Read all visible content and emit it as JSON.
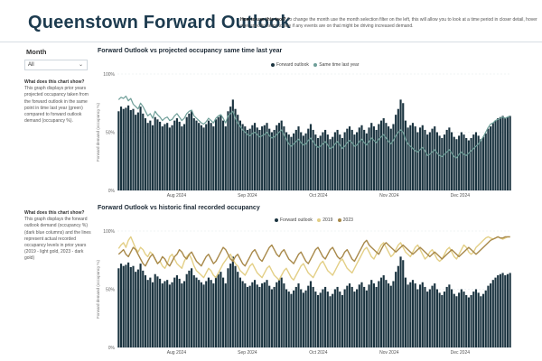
{
  "page": {
    "title": "Queenstown Forward Outlook"
  },
  "help": {
    "lead": "How to use this tool?",
    "text": "To change the month use the month selection filter on the left, this will allow you to look at a time period in closer detail, hover over specific items to see if any events are on that might be driving increased demand."
  },
  "filter": {
    "label": "Month",
    "value": "All"
  },
  "desc1": {
    "lead": "What does this chart show?",
    "text": "This graph displays prior years projected occupancy taken from the forward outlook in the same point in time last year (green) compared to forward outlook demand (occupancy %)."
  },
  "desc2": {
    "lead": "What does this chart show?",
    "text": "This graph displays the forward outlook demand (occupancy %) (dark blue columns) and the lines represent actual recorded occupancy levels in prior years (2019 - light gold, 2023 - dark gold)"
  },
  "colors": {
    "bar": "#1b3440",
    "green": "#6e9e98",
    "lightgold": "#e3cf86",
    "darkgold": "#a8894a"
  },
  "chart_data": [
    {
      "type": "bar",
      "title": "Forward Outlook vs projected occupancy same time last year",
      "ylabel": "Forward demand (occupancy %)",
      "ylim": [
        0,
        100
      ],
      "yticks": [
        "0%",
        "50%",
        "100%"
      ],
      "xticks": [
        "Aug 2024",
        "Sep 2024",
        "Oct 2024",
        "Nov 2024",
        "Dec 2024"
      ],
      "legend": [
        "Forward outlook",
        "Same time last year"
      ],
      "series": [
        {
          "name": "Forward outlook",
          "values": [
            68,
            72,
            70,
            71,
            73,
            69,
            70,
            65,
            67,
            72,
            66,
            62,
            58,
            60,
            56,
            63,
            61,
            59,
            55,
            57,
            58,
            54,
            56,
            60,
            62,
            59,
            55,
            57,
            63,
            66,
            68,
            62,
            60,
            58,
            56,
            54,
            57,
            60,
            58,
            55,
            61,
            63,
            65,
            60,
            55,
            68,
            72,
            78,
            70,
            65,
            60,
            57,
            55,
            52,
            53,
            56,
            58,
            54,
            52,
            55,
            56,
            58,
            53,
            50,
            52,
            56,
            58,
            60,
            55,
            50,
            48,
            46,
            49,
            52,
            55,
            50,
            47,
            49,
            53,
            57,
            52,
            48,
            45,
            47,
            50,
            52,
            48,
            44,
            46,
            50,
            52,
            48,
            45,
            50,
            53,
            55,
            52,
            48,
            50,
            54,
            56,
            52,
            49,
            54,
            58,
            55,
            52,
            57,
            60,
            62,
            58,
            55,
            53,
            57,
            65,
            70,
            78,
            75,
            60,
            54,
            56,
            58,
            55,
            50,
            54,
            56,
            52,
            48,
            50,
            53,
            55,
            50,
            47,
            45,
            48,
            52,
            54,
            50,
            46,
            44,
            47,
            50,
            48,
            45,
            43,
            45,
            48,
            50,
            47,
            44,
            46,
            49,
            53,
            55,
            58,
            60,
            62,
            63,
            64,
            62,
            63,
            64
          ]
        },
        {
          "name": "Same time last year",
          "values": [
            78,
            80,
            79,
            81,
            77,
            79,
            74,
            72,
            70,
            75,
            72,
            68,
            64,
            66,
            62,
            68,
            65,
            63,
            60,
            62,
            63,
            60,
            61,
            64,
            66,
            63,
            60,
            62,
            66,
            68,
            69,
            64,
            62,
            60,
            58,
            57,
            59,
            62,
            60,
            58,
            62,
            64,
            65,
            62,
            58,
            64,
            66,
            68,
            62,
            58,
            55,
            52,
            50,
            48,
            47,
            49,
            50,
            48,
            46,
            47,
            48,
            50,
            47,
            45,
            46,
            48,
            50,
            52,
            48,
            44,
            40,
            38,
            40,
            42,
            44,
            41,
            39,
            40,
            43,
            45,
            42,
            39,
            37,
            38,
            40,
            42,
            39,
            36,
            37,
            40,
            42,
            39,
            36,
            38,
            41,
            43,
            41,
            38,
            39,
            42,
            44,
            41,
            39,
            42,
            45,
            43,
            41,
            44,
            46,
            48,
            45,
            42,
            40,
            43,
            47,
            50,
            52,
            50,
            44,
            40,
            38,
            36,
            34,
            33,
            35,
            37,
            34,
            30,
            31,
            33,
            35,
            32,
            30,
            29,
            31,
            33,
            35,
            32,
            29,
            28,
            31,
            33,
            31,
            30,
            32,
            34,
            36,
            38,
            40,
            43,
            46,
            50,
            54,
            57,
            58,
            60,
            61,
            62,
            63,
            62,
            63,
            64
          ]
        }
      ]
    },
    {
      "type": "bar",
      "title": "Forward Outlook vs historic final recorded occupancy",
      "ylabel": "Forward demand (occupancy %)",
      "ylim": [
        0,
        100
      ],
      "yticks": [
        "0%",
        "50%",
        "100%"
      ],
      "xticks": [
        "Aug 2024",
        "Sep 2024",
        "Oct 2024",
        "Nov 2024",
        "Dec 2024"
      ],
      "legend": [
        "Forward outlook",
        "2019",
        "2023"
      ],
      "series": [
        {
          "name": "Forward outlook",
          "values": [
            68,
            72,
            70,
            71,
            73,
            69,
            70,
            65,
            67,
            72,
            66,
            62,
            58,
            60,
            56,
            63,
            61,
            59,
            55,
            57,
            58,
            54,
            56,
            60,
            62,
            59,
            55,
            57,
            63,
            66,
            68,
            62,
            60,
            58,
            56,
            54,
            57,
            60,
            58,
            55,
            61,
            63,
            65,
            60,
            55,
            68,
            72,
            78,
            70,
            65,
            60,
            57,
            55,
            52,
            53,
            56,
            58,
            54,
            52,
            55,
            56,
            58,
            53,
            50,
            52,
            56,
            58,
            60,
            55,
            50,
            48,
            46,
            49,
            52,
            55,
            50,
            47,
            49,
            53,
            57,
            52,
            48,
            45,
            47,
            50,
            52,
            48,
            44,
            46,
            50,
            52,
            48,
            45,
            50,
            53,
            55,
            52,
            48,
            50,
            54,
            56,
            52,
            49,
            54,
            58,
            55,
            52,
            57,
            60,
            62,
            58,
            55,
            53,
            57,
            65,
            70,
            78,
            75,
            60,
            54,
            56,
            58,
            55,
            50,
            54,
            56,
            52,
            48,
            50,
            53,
            55,
            50,
            47,
            45,
            48,
            52,
            54,
            50,
            46,
            44,
            47,
            50,
            48,
            45,
            43,
            45,
            48,
            50,
            47,
            44,
            46,
            49,
            53,
            55,
            58,
            60,
            62,
            63,
            64,
            62,
            63,
            64
          ]
        },
        {
          "name": "2019",
          "values": [
            85,
            88,
            90,
            86,
            92,
            95,
            90,
            85,
            82,
            86,
            84,
            80,
            78,
            82,
            80,
            76,
            72,
            74,
            70,
            68,
            72,
            78,
            80,
            76,
            72,
            70,
            68,
            74,
            78,
            80,
            76,
            70,
            66,
            64,
            62,
            60,
            64,
            68,
            66,
            62,
            60,
            64,
            68,
            72,
            75,
            78,
            80,
            76,
            72,
            70,
            66,
            64,
            62,
            66,
            70,
            72,
            68,
            64,
            62,
            60,
            64,
            68,
            70,
            66,
            62,
            60,
            58,
            62,
            66,
            68,
            64,
            60,
            58,
            62,
            66,
            70,
            72,
            68,
            64,
            62,
            60,
            64,
            68,
            72,
            74,
            70,
            66,
            64,
            62,
            66,
            70,
            74,
            76,
            72,
            68,
            66,
            64,
            68,
            72,
            76,
            80,
            84,
            86,
            82,
            78,
            76,
            80,
            84,
            88,
            90,
            86,
            82,
            78,
            80,
            84,
            88,
            90,
            86,
            82,
            80,
            78,
            82,
            86,
            88,
            84,
            80,
            76,
            78,
            82,
            84,
            80,
            76,
            74,
            76,
            80,
            84,
            86,
            82,
            78,
            76,
            80,
            84,
            88,
            86,
            82,
            80,
            82,
            86,
            88,
            90,
            92,
            94,
            95,
            94,
            93,
            94,
            95,
            94,
            93,
            94,
            95,
            95
          ]
        },
        {
          "name": "2023",
          "values": [
            80,
            82,
            84,
            80,
            78,
            82,
            86,
            84,
            80,
            76,
            72,
            70,
            74,
            78,
            80,
            76,
            72,
            74,
            78,
            76,
            72,
            70,
            74,
            78,
            80,
            84,
            82,
            78,
            76,
            80,
            82,
            78,
            74,
            72,
            70,
            74,
            78,
            80,
            76,
            72,
            74,
            78,
            82,
            86,
            84,
            80,
            76,
            74,
            78,
            80,
            76,
            72,
            70,
            74,
            78,
            82,
            84,
            80,
            76,
            74,
            78,
            82,
            86,
            88,
            84,
            80,
            78,
            82,
            84,
            80,
            76,
            74,
            72,
            76,
            80,
            82,
            78,
            74,
            72,
            76,
            80,
            84,
            86,
            82,
            78,
            76,
            80,
            84,
            86,
            82,
            78,
            76,
            78,
            82,
            84,
            80,
            76,
            74,
            78,
            82,
            86,
            90,
            92,
            88,
            86,
            84,
            82,
            80,
            84,
            88,
            90,
            88,
            86,
            84,
            82,
            84,
            86,
            88,
            86,
            84,
            82,
            80,
            82,
            84,
            86,
            84,
            82,
            80,
            78,
            80,
            82,
            80,
            78,
            76,
            78,
            80,
            82,
            84,
            82,
            80,
            78,
            80,
            82,
            84,
            86,
            84,
            82,
            80,
            82,
            84,
            86,
            88,
            90,
            92,
            93,
            94,
            95,
            94,
            94,
            95,
            95,
            95
          ]
        }
      ]
    }
  ]
}
